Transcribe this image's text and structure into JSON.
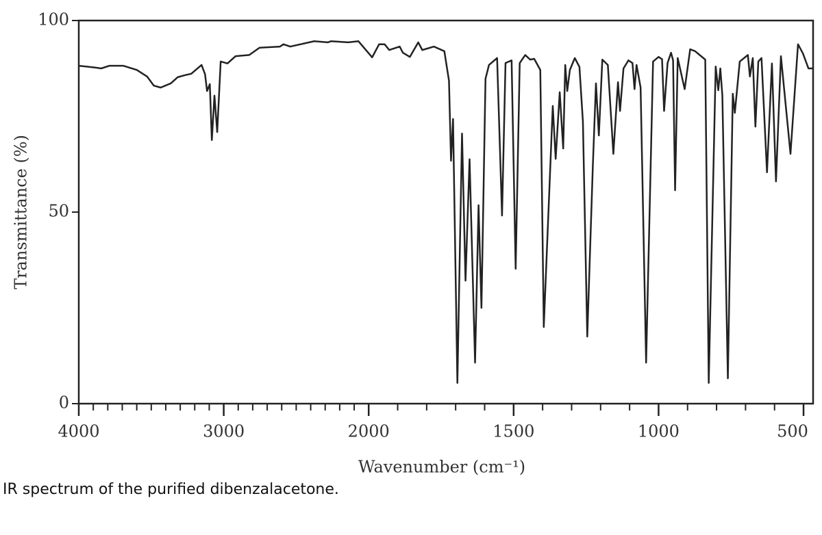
{
  "chart_data": {
    "type": "line",
    "y_label": "Transmittance (%)",
    "x_label": "Wavenumber (cm⁻¹)",
    "caption": "IR spectrum of the purified dibenzalacetone.",
    "xlim": [
      4000,
      467
    ],
    "x_reversed": true,
    "x_scale_break": 2000,
    "x_scale_factor": 2,
    "xticks": [
      4000,
      3000,
      2000,
      1500,
      1000,
      500
    ],
    "xminorticks": [
      3900,
      3800,
      3700,
      3600,
      3500,
      3400,
      3300,
      3200,
      3100,
      2900,
      2800,
      2700,
      2600,
      2500,
      2400,
      2300,
      2200,
      2100,
      1900,
      1800,
      1700,
      1600,
      1400,
      1300,
      1200,
      1100,
      900,
      800,
      700,
      600
    ],
    "ylim": [
      0,
      100
    ],
    "yticks": [
      0,
      50,
      100
    ],
    "series": [
      {
        "color": "#222222",
        "x": [
          4000,
          3882,
          3845,
          3788,
          3694,
          3600,
          3529,
          3482,
          3435,
          3365,
          3318,
          3271,
          3224,
          3153,
          3129,
          3115,
          3096,
          3082,
          3064,
          3045,
          3021,
          2974,
          2918,
          2824,
          2753,
          2612,
          2588,
          2541,
          2376,
          2282,
          2259,
          2141,
          2071,
          1988,
          1964,
          1945,
          1929,
          1893,
          1882,
          1858,
          1829,
          1815,
          1775,
          1739,
          1723,
          1716,
          1709,
          1694,
          1678,
          1666,
          1652,
          1633,
          1621,
          1611,
          1597,
          1585,
          1557,
          1540,
          1528,
          1507,
          1493,
          1479,
          1460,
          1443,
          1429,
          1408,
          1396,
          1365,
          1355,
          1341,
          1329,
          1322,
          1315,
          1306,
          1289,
          1273,
          1261,
          1246,
          1227,
          1216,
          1206,
          1194,
          1175,
          1156,
          1140,
          1133,
          1121,
          1104,
          1090,
          1083,
          1076,
          1062,
          1043,
          1019,
          1000,
          988,
          981,
          969,
          957,
          950,
          943,
          934,
          910,
          891,
          874,
          839,
          827,
          803,
          794,
          787,
          780,
          761,
          744,
          737,
          720,
          692,
          685,
          675,
          666,
          656,
          645,
          626,
          609,
          595,
          578,
          545,
          519,
          502,
          483,
          467
        ],
        "values": [
          88.2,
          87.7,
          87.5,
          88.2,
          88.2,
          87.1,
          85.4,
          83.0,
          82.5,
          83.6,
          85.2,
          85.7,
          86.1,
          88.4,
          86.0,
          81.6,
          83.4,
          68.8,
          80.4,
          70.9,
          89.3,
          88.8,
          90.7,
          91.0,
          92.9,
          93.2,
          93.8,
          93.2,
          94.6,
          94.3,
          94.6,
          94.3,
          94.6,
          90.4,
          93.8,
          93.8,
          92.3,
          93.2,
          91.6,
          90.5,
          94.3,
          92.3,
          93.2,
          92.0,
          84.3,
          63.4,
          74.3,
          5.4,
          70.5,
          32.1,
          63.8,
          10.7,
          51.8,
          25.0,
          84.8,
          88.4,
          90.2,
          49.1,
          88.9,
          89.6,
          35.2,
          88.9,
          91.0,
          89.8,
          90.0,
          87.1,
          20.0,
          77.7,
          63.9,
          81.3,
          66.6,
          88.4,
          81.6,
          87.1,
          90.2,
          87.9,
          73.6,
          17.5,
          61.6,
          83.6,
          70.0,
          89.8,
          88.4,
          65.2,
          83.9,
          76.4,
          87.5,
          89.6,
          88.9,
          82.1,
          88.4,
          82.5,
          10.7,
          89.3,
          90.5,
          89.9,
          76.4,
          88.9,
          91.6,
          89.6,
          55.7,
          90.2,
          82.1,
          92.5,
          92.0,
          89.8,
          5.4,
          88.0,
          81.8,
          87.5,
          80.4,
          6.6,
          80.9,
          75.9,
          89.3,
          91.0,
          85.4,
          90.2,
          72.3,
          89.3,
          90.2,
          60.4,
          88.8,
          58.0,
          90.7,
          65.2,
          93.8,
          91.4,
          87.5,
          87.5
        ]
      }
    ]
  }
}
